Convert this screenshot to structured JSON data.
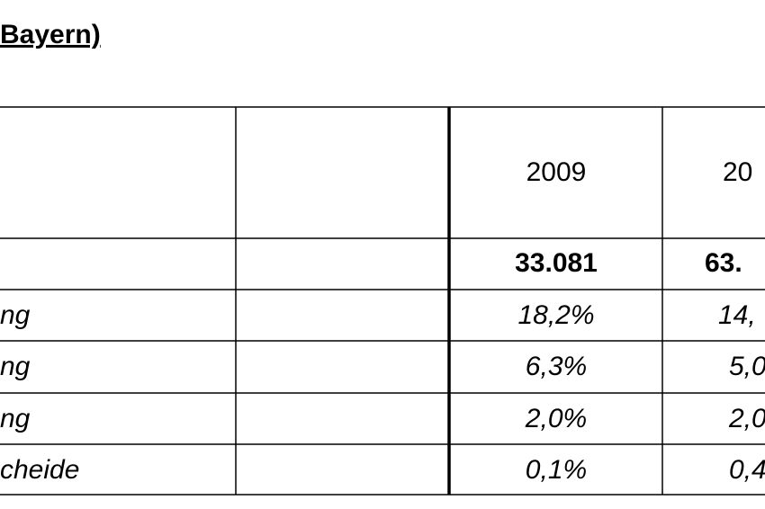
{
  "header": {
    "title": "Bayern)"
  },
  "table": {
    "columns": [
      "2009",
      "20"
    ],
    "rows": [
      {
        "values": [
          "33.081",
          "63."
        ]
      },
      {
        "label": "ng",
        "values": [
          "18,2%",
          "14,"
        ]
      },
      {
        "label": "ng",
        "values": [
          "6,3%",
          "5,0"
        ]
      },
      {
        "label": "ng",
        "values": [
          "2,0%",
          "2,0"
        ]
      },
      {
        "label": "cheide",
        "values": [
          "0,1%",
          "0,4"
        ]
      }
    ]
  }
}
